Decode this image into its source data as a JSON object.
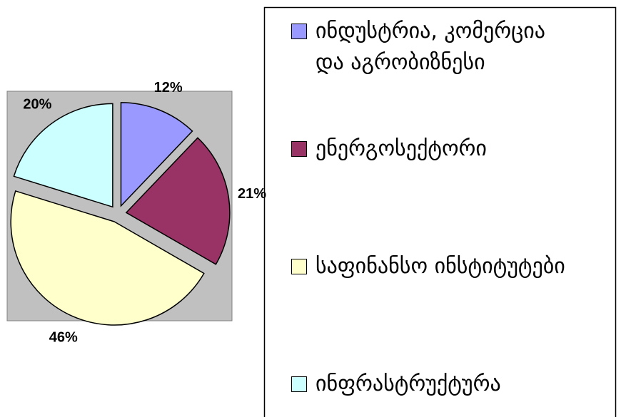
{
  "chart_data": {
    "type": "pie",
    "categories": [
      "ინდუსტრია, კომერცია და აგრობიზნესი",
      "ენერგოსექტორი",
      "საფინანსო ინსტიტუტები",
      "ინფრასტრუქტურა"
    ],
    "values": [
      12,
      21,
      46,
      20
    ],
    "value_labels": [
      "12%",
      "21%",
      "46%",
      "20%"
    ],
    "colors": [
      "#9999ff",
      "#993366",
      "#ffffcc",
      "#ccffff"
    ],
    "legend": "right"
  }
}
